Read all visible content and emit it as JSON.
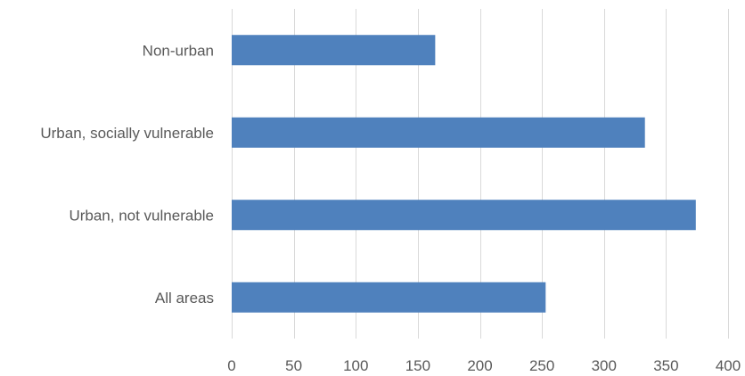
{
  "chart_data": {
    "type": "bar",
    "orientation": "horizontal",
    "title": "",
    "xlabel": "",
    "ylabel": "",
    "categories": [
      "Non-urban",
      "Urban, socially vulnerable",
      "Urban, not vulnerable",
      "All areas"
    ],
    "values": [
      164,
      333,
      374,
      253
    ],
    "xlim": [
      0,
      400
    ],
    "x_ticks": [
      "0",
      "50",
      "100",
      "150",
      "200",
      "250",
      "300",
      "350",
      "400"
    ],
    "grid": true,
    "legend": "none",
    "bar_color": "#4f81bd"
  }
}
